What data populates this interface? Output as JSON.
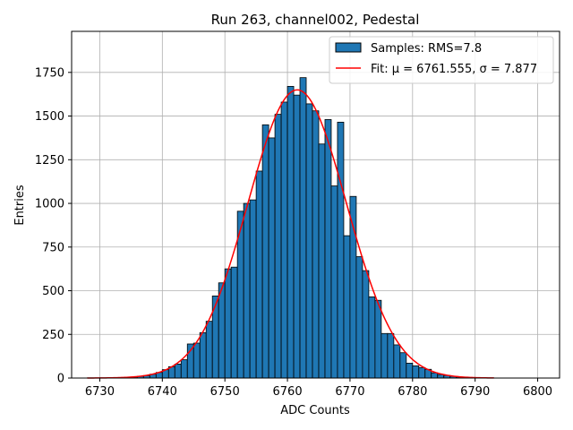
{
  "chart_data": {
    "type": "bar",
    "title": "Run 263, channel002, Pedestal",
    "xlabel": "ADC Counts",
    "ylabel": "Entries",
    "xlim": [
      6725.5,
      6803.5
    ],
    "ylim": [
      0,
      1985
    ],
    "x_ticks": [
      6730,
      6740,
      6750,
      6760,
      6770,
      6780,
      6790,
      6800
    ],
    "y_ticks": [
      0,
      250,
      500,
      750,
      1000,
      1250,
      1500,
      1750
    ],
    "grid": true,
    "legend_position": "top-right",
    "bin_width": 1,
    "bar_color": "#1f77b4",
    "bar_edge_color": "#000000",
    "fit_color": "#ff0000",
    "bins_x": [
      6728,
      6729,
      6730,
      6731,
      6732,
      6733,
      6734,
      6735,
      6736,
      6737,
      6738,
      6739,
      6740,
      6741,
      6742,
      6743,
      6744,
      6745,
      6746,
      6747,
      6748,
      6749,
      6750,
      6751,
      6752,
      6753,
      6754,
      6755,
      6756,
      6757,
      6758,
      6759,
      6760,
      6761,
      6762,
      6763,
      6764,
      6765,
      6766,
      6767,
      6768,
      6769,
      6770,
      6771,
      6772,
      6773,
      6774,
      6775,
      6776,
      6777,
      6778,
      6779,
      6780,
      6781,
      6782,
      6783,
      6784,
      6785,
      6786,
      6787,
      6788,
      6789,
      6790,
      6791,
      6792
    ],
    "values": [
      1,
      0,
      1,
      1,
      2,
      3,
      4,
      6,
      10,
      14,
      22,
      32,
      48,
      65,
      80,
      105,
      195,
      200,
      260,
      325,
      470,
      545,
      625,
      635,
      955,
      1000,
      1020,
      1185,
      1450,
      1375,
      1510,
      1580,
      1670,
      1620,
      1720,
      1570,
      1530,
      1340,
      1480,
      1100,
      1465,
      815,
      1040,
      695,
      615,
      465,
      445,
      255,
      255,
      190,
      145,
      85,
      70,
      60,
      50,
      30,
      20,
      15,
      10,
      6,
      4,
      3,
      2,
      1,
      1
    ],
    "series": [
      {
        "name": "Samples: RMS=7.8",
        "kind": "histogram"
      },
      {
        "name": "Fit: μ = 6761.555, σ = 7.877",
        "kind": "gaussian",
        "mu": 6761.555,
        "sigma": 7.877,
        "amplitude": 1650,
        "x_range": [
          6728,
          6793
        ]
      }
    ]
  }
}
